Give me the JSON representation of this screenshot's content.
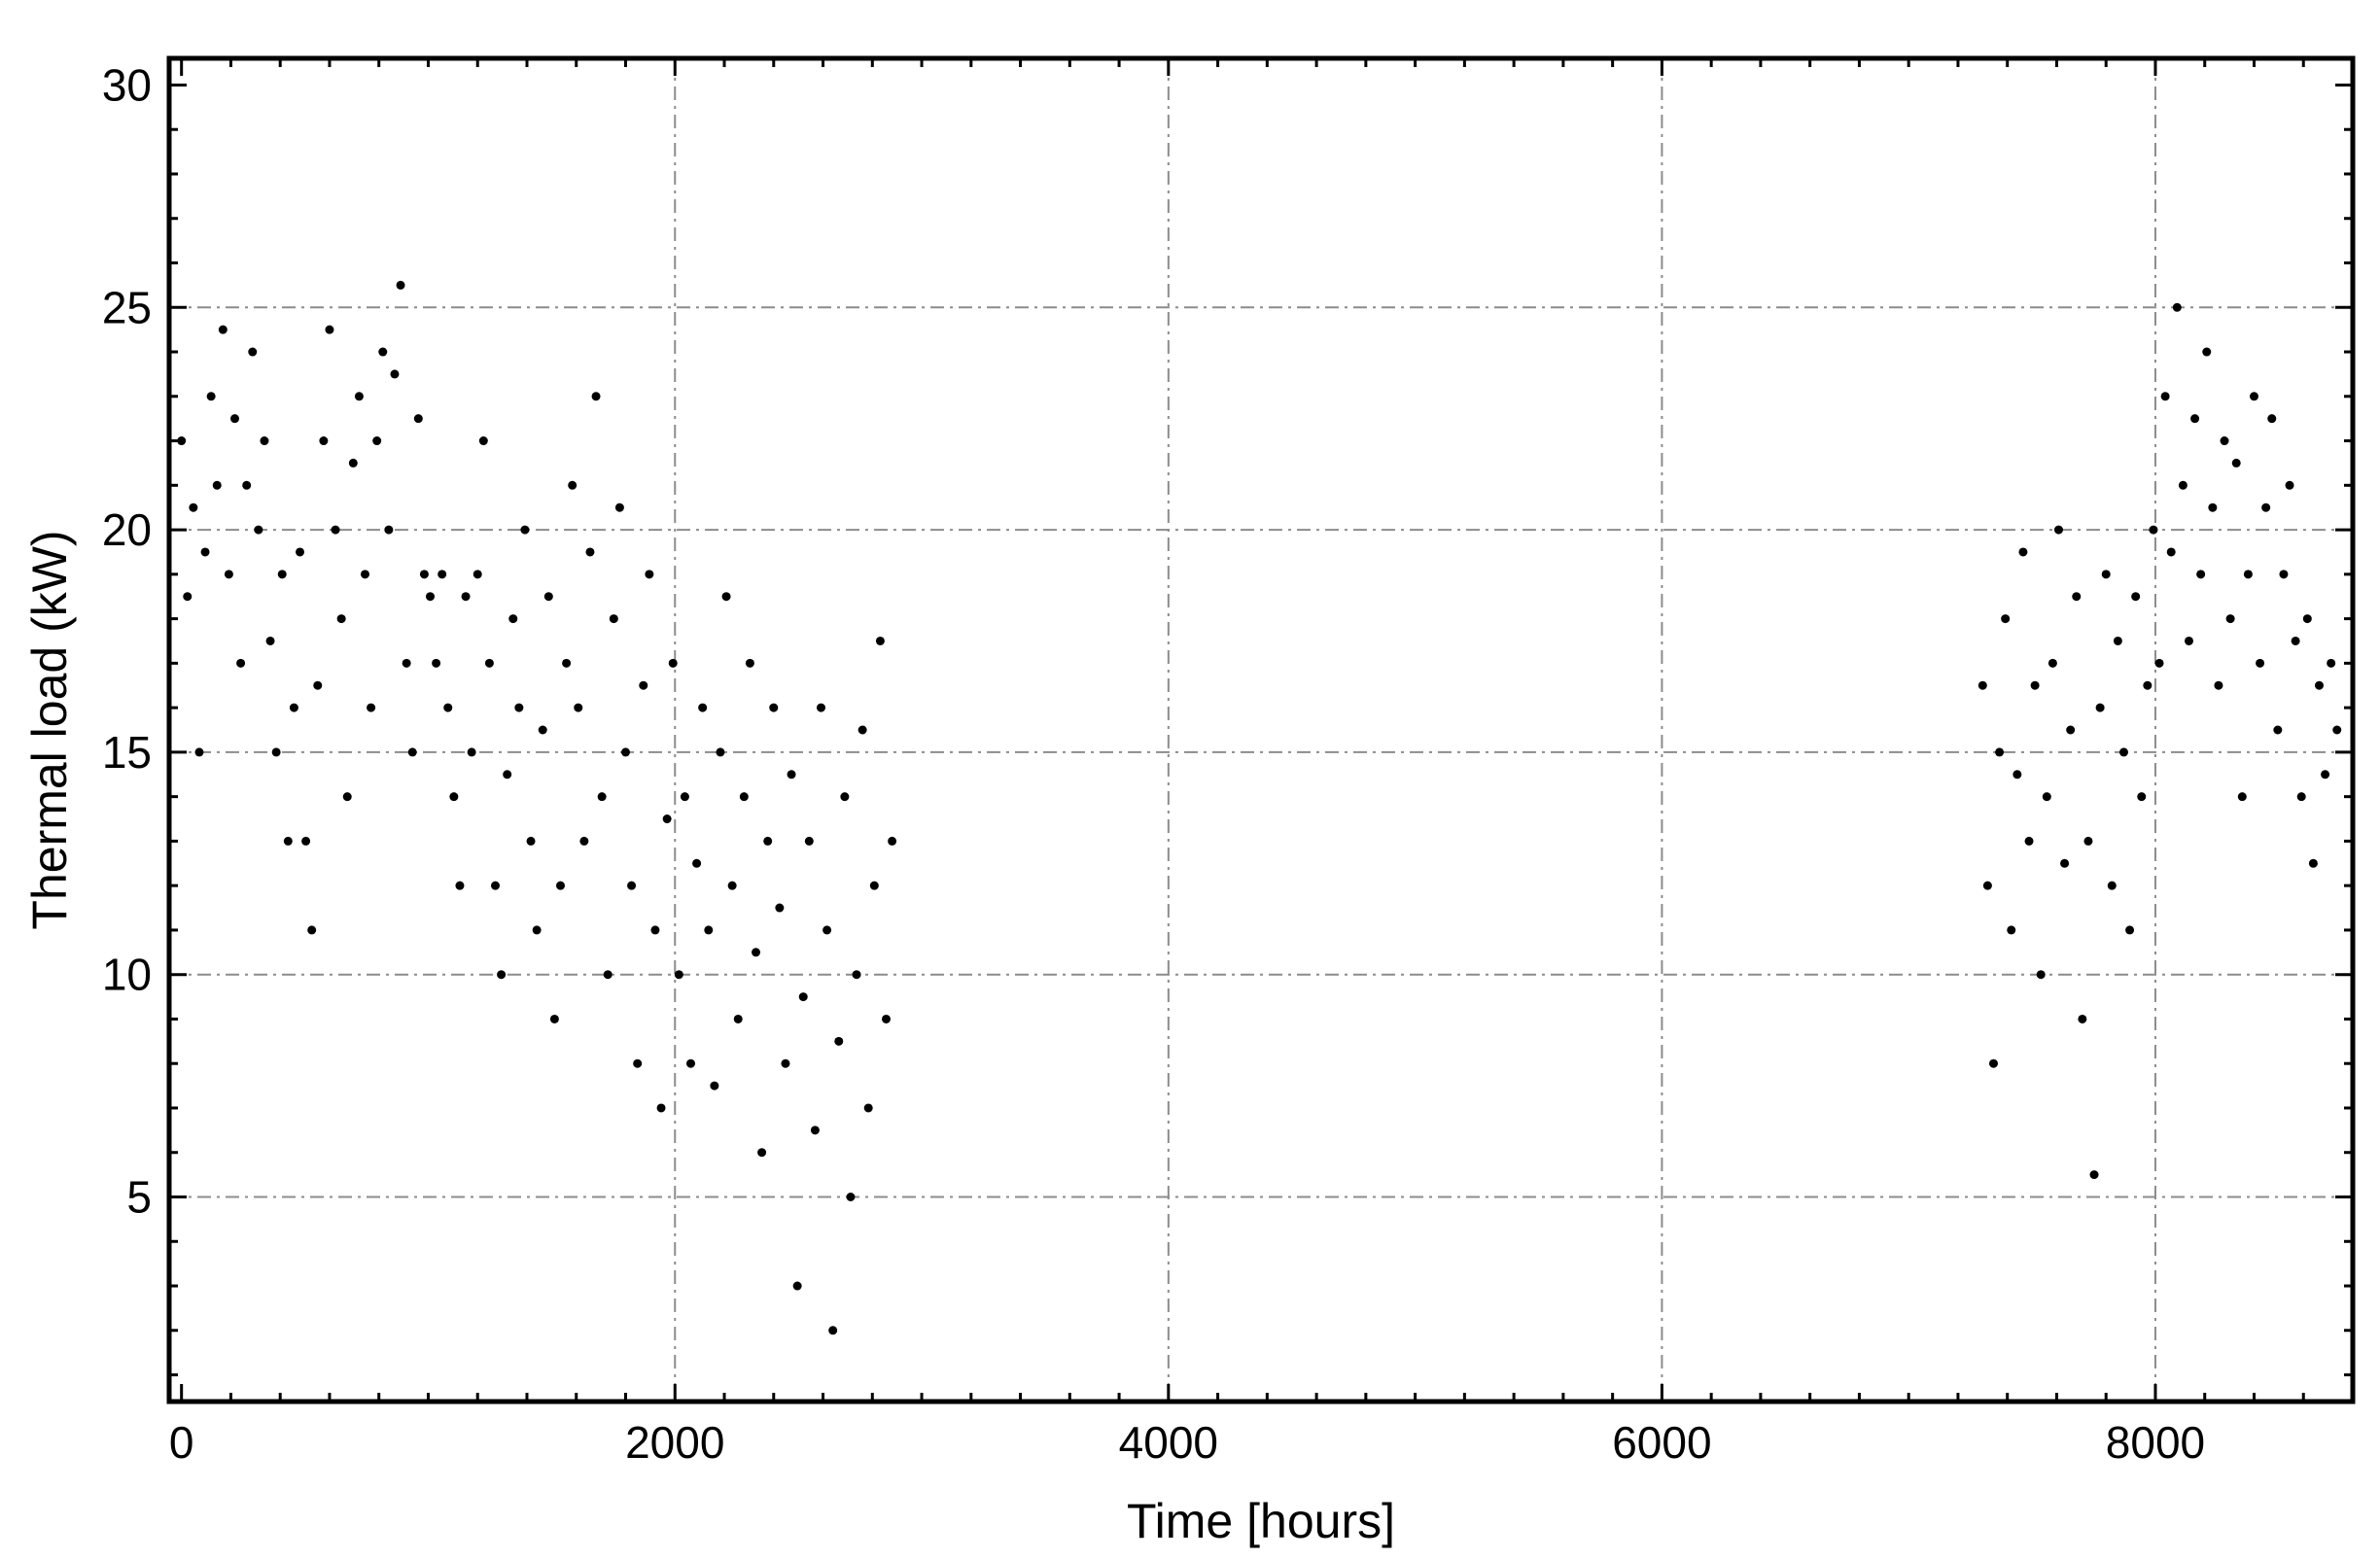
{
  "chart_data": {
    "type": "scatter",
    "xlabel": "Time [hours]",
    "ylabel": "Thermal load (kW)",
    "xlim": [
      -50,
      8800
    ],
    "ylim": [
      0.4,
      30.6
    ],
    "x_ticks": [
      0,
      2000,
      4000,
      6000,
      8000
    ],
    "x_tick_labels": [
      "0",
      "2000",
      "4000",
      "6000",
      "8000"
    ],
    "y_ticks": [
      5,
      10,
      15,
      20,
      25,
      30
    ],
    "y_tick_labels": [
      "5",
      "10",
      "15",
      "20",
      "25",
      "30"
    ],
    "grid": true,
    "legend": "none",
    "marker_color": "#000000",
    "series": [
      {
        "points": [
          [
            0,
            22
          ],
          [
            24,
            18.5
          ],
          [
            48,
            20.5
          ],
          [
            72,
            15
          ],
          [
            96,
            19.5
          ],
          [
            120,
            23
          ],
          [
            144,
            21
          ],
          [
            168,
            24.5
          ],
          [
            192,
            19
          ],
          [
            216,
            22.5
          ],
          [
            240,
            17
          ],
          [
            264,
            21
          ],
          [
            288,
            24
          ],
          [
            312,
            20
          ],
          [
            336,
            22
          ],
          [
            360,
            17.5
          ],
          [
            384,
            15
          ],
          [
            408,
            19
          ],
          [
            432,
            13
          ],
          [
            456,
            16
          ],
          [
            480,
            19.5
          ],
          [
            504,
            13
          ],
          [
            528,
            11
          ],
          [
            552,
            16.5
          ],
          [
            576,
            22
          ],
          [
            600,
            24.5
          ],
          [
            624,
            20
          ],
          [
            648,
            18
          ],
          [
            672,
            14
          ],
          [
            696,
            21.5
          ],
          [
            720,
            23
          ],
          [
            744,
            19
          ],
          [
            768,
            16
          ],
          [
            792,
            22
          ],
          [
            816,
            24
          ],
          [
            840,
            20
          ],
          [
            864,
            23.5
          ],
          [
            888,
            25.5
          ],
          [
            912,
            17
          ],
          [
            936,
            15
          ],
          [
            960,
            22.5
          ],
          [
            984,
            19
          ],
          [
            1008,
            18.5
          ],
          [
            1032,
            17
          ],
          [
            1056,
            19
          ],
          [
            1080,
            16
          ],
          [
            1104,
            14
          ],
          [
            1128,
            12
          ],
          [
            1152,
            18.5
          ],
          [
            1176,
            15
          ],
          [
            1200,
            19
          ],
          [
            1224,
            22
          ],
          [
            1248,
            17
          ],
          [
            1272,
            12
          ],
          [
            1296,
            10
          ],
          [
            1320,
            14.5
          ],
          [
            1344,
            18
          ],
          [
            1368,
            16
          ],
          [
            1392,
            20
          ],
          [
            1416,
            13
          ],
          [
            1440,
            11
          ],
          [
            1464,
            15.5
          ],
          [
            1488,
            18.5
          ],
          [
            1512,
            9
          ],
          [
            1536,
            12
          ],
          [
            1560,
            17
          ],
          [
            1584,
            21
          ],
          [
            1608,
            16
          ],
          [
            1632,
            13
          ],
          [
            1656,
            19.5
          ],
          [
            1680,
            23
          ],
          [
            1704,
            14
          ],
          [
            1728,
            10
          ],
          [
            1752,
            18
          ],
          [
            1776,
            20.5
          ],
          [
            1800,
            15
          ],
          [
            1824,
            12
          ],
          [
            1848,
            8
          ],
          [
            1872,
            16.5
          ],
          [
            1896,
            19
          ],
          [
            1920,
            11
          ],
          [
            1944,
            7
          ],
          [
            1968,
            13.5
          ],
          [
            1992,
            17
          ],
          [
            2016,
            10
          ],
          [
            2040,
            14
          ],
          [
            2064,
            8
          ],
          [
            2088,
            12.5
          ],
          [
            2112,
            16
          ],
          [
            2136,
            11
          ],
          [
            2160,
            7.5
          ],
          [
            2184,
            15
          ],
          [
            2208,
            18.5
          ],
          [
            2232,
            12
          ],
          [
            2256,
            9
          ],
          [
            2280,
            14
          ],
          [
            2304,
            17
          ],
          [
            2328,
            10.5
          ],
          [
            2352,
            6
          ],
          [
            2376,
            13
          ],
          [
            2400,
            16
          ],
          [
            2424,
            11.5
          ],
          [
            2448,
            8
          ],
          [
            2472,
            14.5
          ],
          [
            2496,
            3
          ],
          [
            2520,
            9.5
          ],
          [
            2544,
            13
          ],
          [
            2568,
            6.5
          ],
          [
            2592,
            16
          ],
          [
            2616,
            11
          ],
          [
            2640,
            2
          ],
          [
            2664,
            8.5
          ],
          [
            2688,
            14
          ],
          [
            2712,
            5
          ],
          [
            2736,
            10
          ],
          [
            2760,
            15.5
          ],
          [
            2784,
            7
          ],
          [
            2808,
            12
          ],
          [
            2832,
            17.5
          ],
          [
            2856,
            9
          ],
          [
            2880,
            13
          ],
          [
            7300,
            16.5
          ],
          [
            7320,
            12
          ],
          [
            7344,
            8
          ],
          [
            7368,
            15
          ],
          [
            7392,
            18
          ],
          [
            7416,
            11
          ],
          [
            7440,
            14.5
          ],
          [
            7464,
            19.5
          ],
          [
            7488,
            13
          ],
          [
            7512,
            16.5
          ],
          [
            7536,
            10
          ],
          [
            7560,
            14
          ],
          [
            7584,
            17
          ],
          [
            7608,
            20
          ],
          [
            7632,
            12.5
          ],
          [
            7656,
            15.5
          ],
          [
            7680,
            18.5
          ],
          [
            7704,
            9
          ],
          [
            7728,
            13
          ],
          [
            7752,
            5.5
          ],
          [
            7776,
            16
          ],
          [
            7800,
            19
          ],
          [
            7824,
            12
          ],
          [
            7848,
            17.5
          ],
          [
            7872,
            15
          ],
          [
            7896,
            11
          ],
          [
            7920,
            18.5
          ],
          [
            7944,
            14
          ],
          [
            7968,
            16.5
          ],
          [
            7992,
            20
          ],
          [
            8016,
            17
          ],
          [
            8040,
            23
          ],
          [
            8064,
            19.5
          ],
          [
            8088,
            25
          ],
          [
            8112,
            21
          ],
          [
            8136,
            17.5
          ],
          [
            8160,
            22.5
          ],
          [
            8184,
            19
          ],
          [
            8208,
            24
          ],
          [
            8232,
            20.5
          ],
          [
            8256,
            16.5
          ],
          [
            8280,
            22
          ],
          [
            8304,
            18
          ],
          [
            8328,
            21.5
          ],
          [
            8352,
            14
          ],
          [
            8376,
            19
          ],
          [
            8400,
            23
          ],
          [
            8424,
            17
          ],
          [
            8448,
            20.5
          ],
          [
            8472,
            22.5
          ],
          [
            8496,
            15.5
          ],
          [
            8520,
            19
          ],
          [
            8544,
            21
          ],
          [
            8568,
            17.5
          ],
          [
            8592,
            14
          ],
          [
            8616,
            18
          ],
          [
            8640,
            12.5
          ],
          [
            8664,
            16.5
          ],
          [
            8688,
            14.5
          ],
          [
            8712,
            17
          ],
          [
            8736,
            15.5
          ]
        ]
      }
    ]
  }
}
